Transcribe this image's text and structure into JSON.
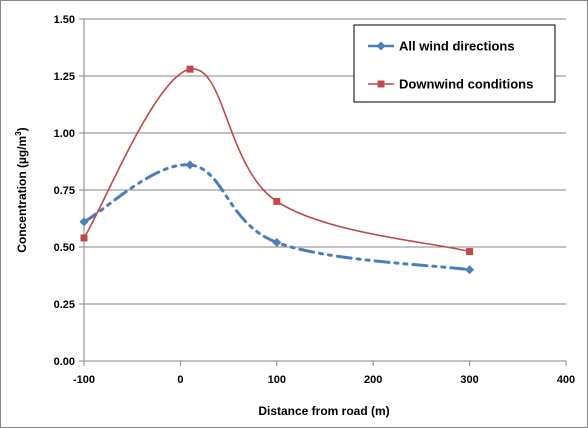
{
  "chart_data": {
    "type": "line",
    "title": "",
    "xlabel": "Distance from road (m)",
    "ylabel_main": "Concentration (µg/m",
    "ylabel_sup": "3",
    "ylabel_tail": ")",
    "xlim": [
      -100,
      400
    ],
    "ylim": [
      0,
      1.5
    ],
    "x_ticks": [
      -100,
      0,
      100,
      200,
      300,
      400
    ],
    "x_tick_labels": [
      "-100",
      "0",
      "100",
      "200",
      "300",
      "400"
    ],
    "y_ticks": [
      0,
      0.25,
      0.5,
      0.75,
      1.0,
      1.25,
      1.5
    ],
    "y_tick_labels": [
      "0.00",
      "0.25",
      "0.50",
      "0.75",
      "1.00",
      "1.25",
      "1.50"
    ],
    "grid": "horizontal",
    "legend_position": "top-right",
    "series": [
      {
        "name": "All wind directions",
        "color": "#4a7ebb",
        "marker": "diamond",
        "line_style": "dash-dot-dot",
        "x": [
          -100,
          10,
          100,
          300
        ],
        "y": [
          0.61,
          0.86,
          0.52,
          0.4
        ]
      },
      {
        "name": "Downwind conditions",
        "color": "#be4b48",
        "marker": "square",
        "line_style": "solid",
        "x": [
          -100,
          10,
          100,
          300
        ],
        "y": [
          0.54,
          1.28,
          0.7,
          0.48
        ]
      }
    ]
  }
}
